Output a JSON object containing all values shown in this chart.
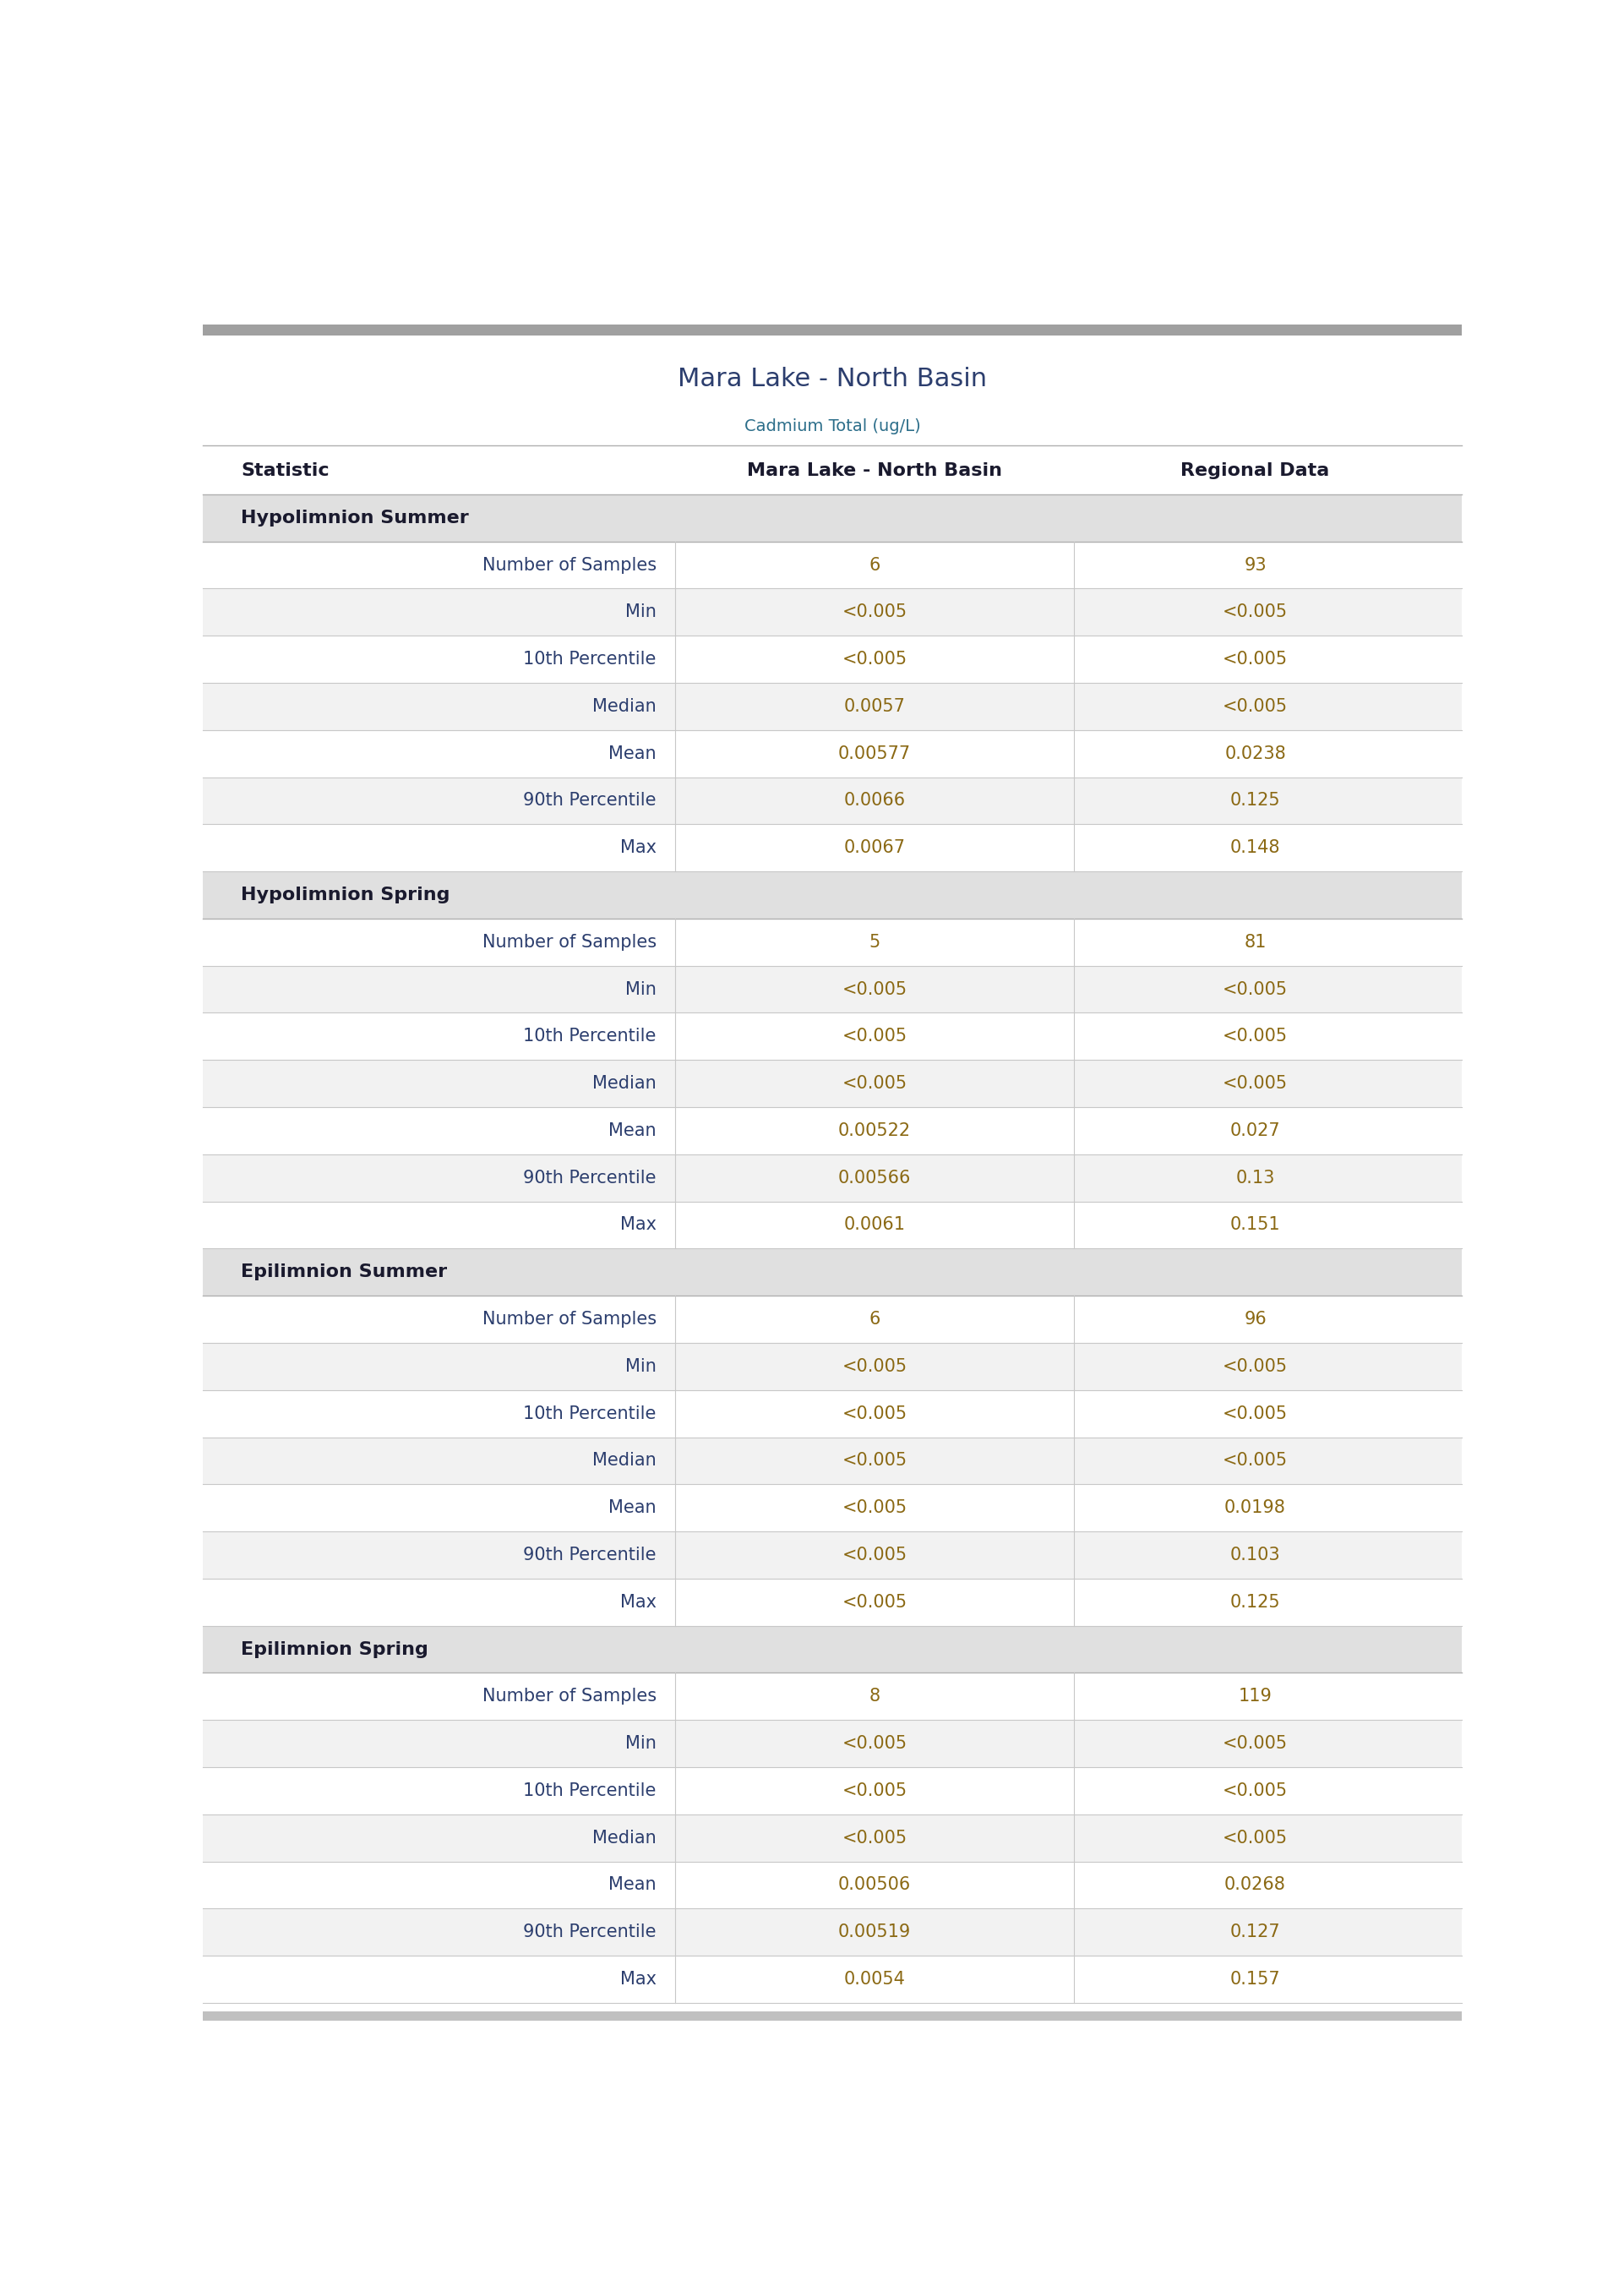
{
  "title": "Mara Lake - North Basin",
  "subtitle": "Cadmium Total (ug/L)",
  "col_headers": [
    "Statistic",
    "Mara Lake - North Basin",
    "Regional Data"
  ],
  "sections": [
    {
      "label": "Hypolimnion Summer",
      "rows": [
        [
          "Number of Samples",
          "6",
          "93"
        ],
        [
          "Min",
          "<0.005",
          "<0.005"
        ],
        [
          "10th Percentile",
          "<0.005",
          "<0.005"
        ],
        [
          "Median",
          "0.0057",
          "<0.005"
        ],
        [
          "Mean",
          "0.00577",
          "0.0238"
        ],
        [
          "90th Percentile",
          "0.0066",
          "0.125"
        ],
        [
          "Max",
          "0.0067",
          "0.148"
        ]
      ]
    },
    {
      "label": "Hypolimnion Spring",
      "rows": [
        [
          "Number of Samples",
          "5",
          "81"
        ],
        [
          "Min",
          "<0.005",
          "<0.005"
        ],
        [
          "10th Percentile",
          "<0.005",
          "<0.005"
        ],
        [
          "Median",
          "<0.005",
          "<0.005"
        ],
        [
          "Mean",
          "0.00522",
          "0.027"
        ],
        [
          "90th Percentile",
          "0.00566",
          "0.13"
        ],
        [
          "Max",
          "0.0061",
          "0.151"
        ]
      ]
    },
    {
      "label": "Epilimnion Summer",
      "rows": [
        [
          "Number of Samples",
          "6",
          "96"
        ],
        [
          "Min",
          "<0.005",
          "<0.005"
        ],
        [
          "10th Percentile",
          "<0.005",
          "<0.005"
        ],
        [
          "Median",
          "<0.005",
          "<0.005"
        ],
        [
          "Mean",
          "<0.005",
          "0.0198"
        ],
        [
          "90th Percentile",
          "<0.005",
          "0.103"
        ],
        [
          "Max",
          "<0.005",
          "0.125"
        ]
      ]
    },
    {
      "label": "Epilimnion Spring",
      "rows": [
        [
          "Number of Samples",
          "8",
          "119"
        ],
        [
          "Min",
          "<0.005",
          "<0.005"
        ],
        [
          "10th Percentile",
          "<0.005",
          "<0.005"
        ],
        [
          "Median",
          "<0.005",
          "<0.005"
        ],
        [
          "Mean",
          "0.00506",
          "0.0268"
        ],
        [
          "90th Percentile",
          "0.00519",
          "0.127"
        ],
        [
          "Max",
          "0.0054",
          "0.157"
        ]
      ]
    }
  ],
  "top_bar_color": "#a0a0a0",
  "section_header_bg": "#e0e0e0",
  "odd_row_bg": "#ffffff",
  "even_row_bg": "#f2f2f2",
  "bottom_bar_color": "#c0c0c0",
  "title_color": "#2c3e6e",
  "subtitle_color": "#2c6e8a",
  "header_text_color": "#1a1a2e",
  "section_text_color": "#1a1a2e",
  "data_text_color": "#8B6914",
  "statistic_text_color": "#2c3e6e",
  "divider_col1": 0.37,
  "divider_col2": 0.7
}
